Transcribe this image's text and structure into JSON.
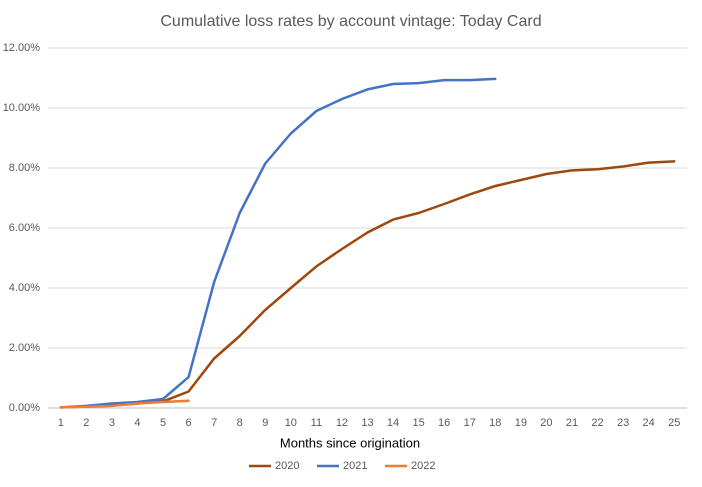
{
  "chart_data": {
    "type": "line",
    "title": "Cumulative loss rates by account vintage:  Today Card",
    "x_label": "Months since origination",
    "categories": [
      1,
      2,
      3,
      4,
      5,
      6,
      7,
      8,
      9,
      10,
      11,
      12,
      13,
      14,
      15,
      16,
      17,
      18,
      19,
      20,
      21,
      22,
      23,
      24,
      25
    ],
    "series": [
      {
        "name": "2020",
        "color": "#9e480e",
        "values": [
          0.02,
          0.05,
          0.08,
          0.15,
          0.22,
          0.55,
          1.65,
          2.4,
          3.27,
          4.0,
          4.72,
          5.3,
          5.85,
          6.28,
          6.5,
          6.8,
          7.12,
          7.4,
          7.6,
          7.8,
          7.92,
          7.96,
          8.05,
          8.18,
          8.22
        ]
      },
      {
        "name": "2021",
        "color": "#4472c4",
        "values": [
          0.02,
          0.07,
          0.15,
          0.2,
          0.3,
          1.03,
          4.2,
          6.5,
          8.15,
          9.15,
          9.9,
          10.3,
          10.62,
          10.8,
          10.83,
          10.93,
          10.93,
          10.97,
          null,
          null,
          null,
          null,
          null,
          null,
          null
        ]
      },
      {
        "name": "2022",
        "color": "#ed7d31",
        "values": [
          0.02,
          0.04,
          0.07,
          0.15,
          0.2,
          0.24,
          null,
          null,
          null,
          null,
          null,
          null,
          null,
          null,
          null,
          null,
          null,
          null,
          null,
          null,
          null,
          null,
          null,
          null,
          null
        ]
      }
    ],
    "ylim": [
      0,
      12
    ],
    "yticks": [
      {
        "value": 0,
        "label": "0.00%"
      },
      {
        "value": 2,
        "label": "2.00%"
      },
      {
        "value": 4,
        "label": "4.00%"
      },
      {
        "value": 6,
        "label": "6.00%"
      },
      {
        "value": 8,
        "label": "8.00%"
      },
      {
        "value": 10,
        "label": "10.00%"
      },
      {
        "value": 12,
        "label": "12.00%"
      }
    ],
    "grid": true,
    "legend": "bottom"
  }
}
